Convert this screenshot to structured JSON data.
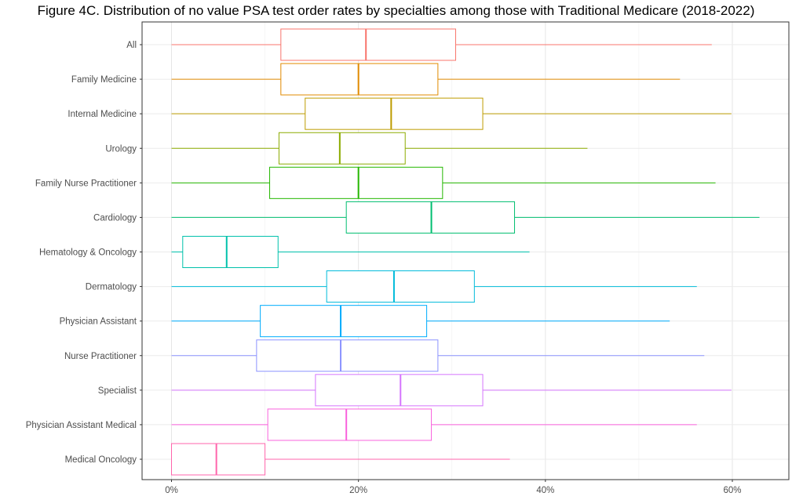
{
  "chart_data": {
    "type": "boxplot",
    "title": "Figure 4C. Distribution of no value PSA test order rates by specialties among those with Traditional Medicare (2018-2022)",
    "xlabel": "",
    "ylabel": "",
    "xlim": [
      -3,
      66
    ],
    "x_ticks": [
      0,
      20,
      40,
      60
    ],
    "x_tick_labels": [
      "0%",
      "20%",
      "40%",
      "60%"
    ],
    "grid": true,
    "legend": "none",
    "categories": [
      "All",
      "Family Medicine",
      "Internal Medicine",
      "Urology",
      "Family Nurse Practitioner",
      "Cardiology",
      "Hematology & Oncology",
      "Dermatology",
      "Physician Assistant",
      "Nurse Practitioner",
      "Specialist",
      "Physician Assistant Medical",
      "Medical Oncology"
    ],
    "boxes": [
      {
        "min": 0,
        "q1": 11.7,
        "median": 20.8,
        "q3": 30.4,
        "max": 57.8,
        "color": "#F8766D"
      },
      {
        "min": 0,
        "q1": 11.7,
        "median": 20.0,
        "q3": 28.5,
        "max": 54.4,
        "color": "#E18A00"
      },
      {
        "min": 0,
        "q1": 14.3,
        "median": 23.5,
        "q3": 33.3,
        "max": 59.9,
        "color": "#BE9C00"
      },
      {
        "min": 0,
        "q1": 11.5,
        "median": 18.0,
        "q3": 25.0,
        "max": 44.5,
        "color": "#8CAB00"
      },
      {
        "min": 0,
        "q1": 10.5,
        "median": 20.0,
        "q3": 29.0,
        "max": 58.2,
        "color": "#24B700"
      },
      {
        "min": 0,
        "q1": 18.7,
        "median": 27.8,
        "q3": 36.7,
        "max": 62.9,
        "color": "#00BE70"
      },
      {
        "min": 0,
        "q1": 1.2,
        "median": 5.9,
        "q3": 11.4,
        "max": 38.3,
        "color": "#00C1AB"
      },
      {
        "min": 0,
        "q1": 16.6,
        "median": 23.8,
        "q3": 32.4,
        "max": 56.2,
        "color": "#00BBDA"
      },
      {
        "min": 0,
        "q1": 9.5,
        "median": 18.1,
        "q3": 27.3,
        "max": 53.3,
        "color": "#00ACFC"
      },
      {
        "min": 0,
        "q1": 9.1,
        "median": 18.1,
        "q3": 28.5,
        "max": 57.0,
        "color": "#8B93FF"
      },
      {
        "min": 0,
        "q1": 15.4,
        "median": 24.5,
        "q3": 33.3,
        "max": 59.9,
        "color": "#D575FE"
      },
      {
        "min": 0,
        "q1": 10.3,
        "median": 18.7,
        "q3": 27.8,
        "max": 56.2,
        "color": "#F962DD"
      },
      {
        "min": 0,
        "q1": 0,
        "median": 4.8,
        "q3": 10.0,
        "max": 36.2,
        "color": "#FF65AC"
      }
    ]
  }
}
